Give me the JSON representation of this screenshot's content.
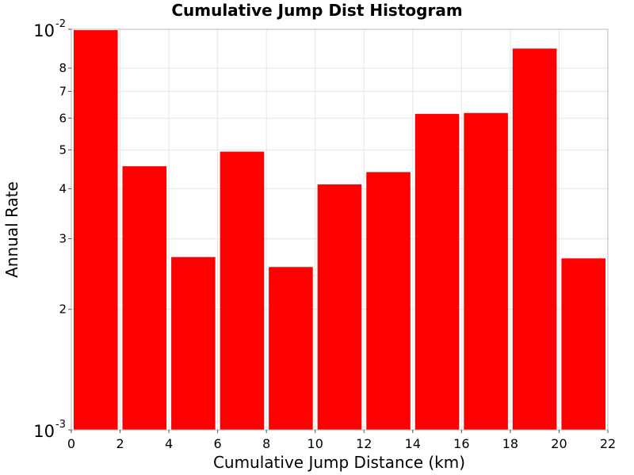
{
  "chart_data": {
    "type": "bar",
    "title": "Cumulative Jump Dist Histogram",
    "xlabel": "Cumulative Jump Distance (km)",
    "ylabel": "Annual Rate",
    "xlim": [
      0,
      22
    ],
    "ylim": [
      0.001,
      0.01
    ],
    "yscale": "log",
    "grid": true,
    "bar_color": "#ff0000",
    "bin_width": 2,
    "bins": [
      1,
      3,
      5,
      7,
      9,
      11,
      13,
      15,
      17,
      19,
      21
    ],
    "values": [
      0.00995,
      0.00455,
      0.0027,
      0.00495,
      0.00255,
      0.0041,
      0.0044,
      0.00615,
      0.00618,
      0.00895,
      0.00268
    ],
    "x_ticks": [
      "0",
      "2",
      "4",
      "6",
      "8",
      "10",
      "12",
      "14",
      "16",
      "18",
      "20",
      "22"
    ],
    "y_major_ticks": [
      {
        "value": 0.001,
        "base": "10",
        "exp": "-3"
      },
      {
        "value": 0.01,
        "base": "10",
        "exp": "-2"
      }
    ],
    "y_minor_ticks": [
      {
        "value": 0.002,
        "label": "2"
      },
      {
        "value": 0.003,
        "label": "3"
      },
      {
        "value": 0.004,
        "label": "4"
      },
      {
        "value": 0.005,
        "label": "5"
      },
      {
        "value": 0.006,
        "label": "6"
      },
      {
        "value": 0.007,
        "label": "7"
      },
      {
        "value": 0.008,
        "label": "8"
      }
    ]
  }
}
